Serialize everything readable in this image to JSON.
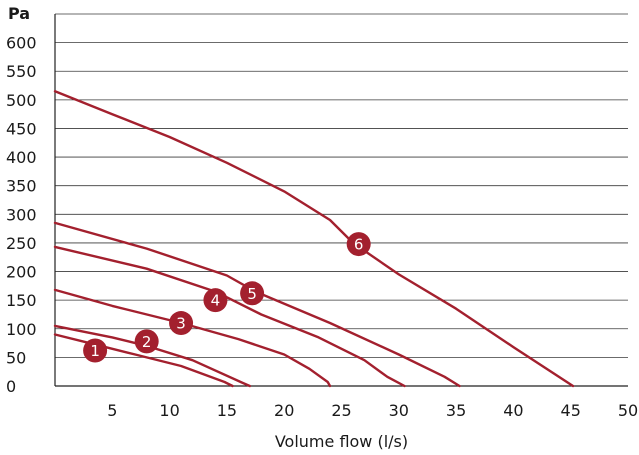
{
  "chart_data": {
    "type": "line",
    "title": "",
    "xlabel": "Volume flow (l/s)",
    "ylabel": "Pa",
    "xlim": [
      0,
      50
    ],
    "ylim": [
      0,
      650
    ],
    "xticks": [
      5,
      10,
      15,
      20,
      25,
      30,
      35,
      40,
      45,
      50
    ],
    "yticks": [
      0,
      50,
      100,
      150,
      200,
      250,
      300,
      350,
      400,
      450,
      500,
      550,
      600
    ],
    "grid": "horizontal",
    "legend": "none",
    "line_color": "#a3202e",
    "marker_color": "#a3202e",
    "series": [
      {
        "label": "1",
        "points": [
          [
            0,
            90
          ],
          [
            3,
            75
          ],
          [
            7,
            55
          ],
          [
            11,
            35
          ],
          [
            14.8,
            7
          ],
          [
            15.5,
            0
          ]
        ],
        "marker": [
          3.5,
          62
        ]
      },
      {
        "label": "2",
        "points": [
          [
            0,
            105
          ],
          [
            5,
            85
          ],
          [
            8,
            70
          ],
          [
            12,
            45
          ],
          [
            16.2,
            7
          ],
          [
            17.0,
            0
          ]
        ],
        "marker": [
          8,
          78
        ]
      },
      {
        "label": "3",
        "points": [
          [
            0,
            168
          ],
          [
            5,
            140
          ],
          [
            11,
            110
          ],
          [
            16,
            82
          ],
          [
            20,
            55
          ],
          [
            22.2,
            30
          ],
          [
            23.8,
            7
          ],
          [
            24.0,
            0
          ]
        ],
        "marker": [
          11,
          110
        ]
      },
      {
        "label": "4",
        "points": [
          [
            0,
            243
          ],
          [
            8,
            205
          ],
          [
            14,
            165
          ],
          [
            18,
            125
          ],
          [
            23,
            85
          ],
          [
            27,
            45
          ],
          [
            29,
            16
          ],
          [
            30.5,
            0
          ]
        ],
        "marker": [
          14,
          150
        ]
      },
      {
        "label": "5",
        "points": [
          [
            0,
            285
          ],
          [
            8,
            240
          ],
          [
            15,
            193
          ],
          [
            17.5,
            165
          ],
          [
            24,
            110
          ],
          [
            30,
            55
          ],
          [
            34,
            16
          ],
          [
            35.3,
            0
          ]
        ],
        "marker": [
          17.2,
          162
        ]
      },
      {
        "label": "6",
        "points": [
          [
            0,
            515
          ],
          [
            5,
            475
          ],
          [
            10,
            435
          ],
          [
            15,
            390
          ],
          [
            20,
            340
          ],
          [
            24,
            290
          ],
          [
            26,
            250
          ],
          [
            30,
            195
          ],
          [
            35,
            135
          ],
          [
            40,
            68
          ],
          [
            45.2,
            0
          ]
        ],
        "marker": [
          26.5,
          248
        ]
      }
    ]
  }
}
